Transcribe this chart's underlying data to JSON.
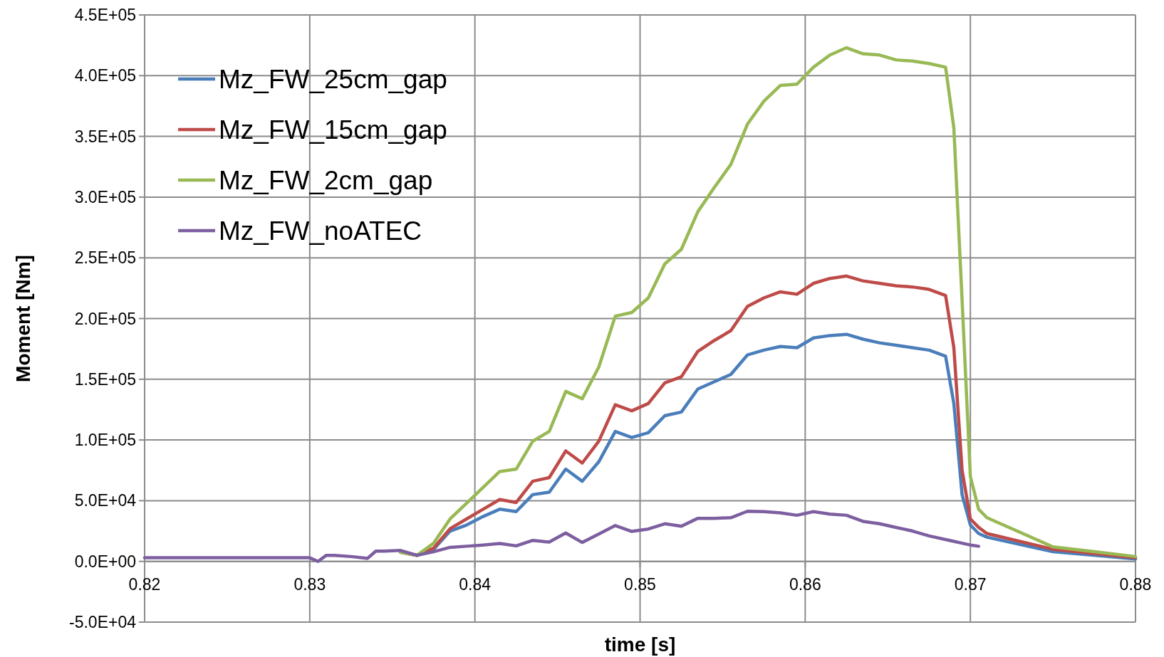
{
  "chart_data": {
    "type": "line",
    "xlabel": "time [s]",
    "ylabel": "Moment [Nm]",
    "x": [
      0.82,
      0.83,
      0.8305,
      0.831,
      0.8315,
      0.8325,
      0.8335,
      0.834,
      0.8345,
      0.8355,
      0.8365,
      0.8375,
      0.8385,
      0.8395,
      0.8405,
      0.8415,
      0.8425,
      0.8435,
      0.8445,
      0.8455,
      0.8465,
      0.8475,
      0.8485,
      0.8495,
      0.8505,
      0.8515,
      0.8525,
      0.8535,
      0.8545,
      0.8555,
      0.8565,
      0.8575,
      0.8585,
      0.8595,
      0.8605,
      0.8615,
      0.8625,
      0.8635,
      0.8645,
      0.8655,
      0.8665,
      0.8675,
      0.8685,
      0.869,
      0.8695,
      0.87,
      0.8705,
      0.871,
      0.875,
      0.88
    ],
    "series": [
      {
        "name": "Mz_FW_25cm_gap",
        "color": "#4a7ebb",
        "values": [
          null,
          null,
          null,
          null,
          null,
          null,
          null,
          null,
          null,
          7500,
          5000,
          10000,
          25000,
          30000,
          37000,
          43000,
          41000,
          55000,
          57000,
          76000,
          66000,
          82000,
          107000,
          102000,
          106000,
          120000,
          123000,
          142000,
          148000,
          154000,
          170000,
          174000,
          177000,
          176000,
          184000,
          186000,
          187000,
          183000,
          180000,
          178000,
          176000,
          174000,
          169000,
          130000,
          55000,
          30000,
          23000,
          20000,
          8000,
          2000
        ]
      },
      {
        "name": "Mz_FW_15cm_gap",
        "color": "#be4b48",
        "values": [
          null,
          null,
          null,
          null,
          null,
          null,
          null,
          null,
          null,
          7500,
          5000,
          11000,
          27000,
          35000,
          43000,
          51000,
          48500,
          66000,
          69000,
          91000,
          81000,
          99000,
          129000,
          124000,
          130000,
          147000,
          152000,
          173000,
          182000,
          190000,
          210000,
          217000,
          222000,
          220000,
          229000,
          233000,
          235000,
          231000,
          229000,
          227000,
          226000,
          224000,
          219000,
          176000,
          75000,
          35000,
          28000,
          23000,
          10000,
          3000
        ]
      },
      {
        "name": "Mz_FW_2cm_gap",
        "color": "#98b954",
        "values": [
          null,
          null,
          null,
          null,
          null,
          null,
          null,
          null,
          null,
          7500,
          5000,
          15000,
          35000,
          48000,
          61000,
          74000,
          76000,
          99000,
          107000,
          140000,
          134000,
          160000,
          202000,
          205000,
          217000,
          245000,
          257000,
          288000,
          308000,
          327000,
          360000,
          379000,
          392000,
          393000,
          407000,
          417000,
          423000,
          418000,
          417000,
          413000,
          412000,
          410000,
          407000,
          357000,
          215000,
          70000,
          43000,
          36000,
          12000,
          4000
        ]
      },
      {
        "name": "Mz_FW_noATEC",
        "color": "#7d5fa0",
        "values": [
          3000,
          3000,
          0,
          5000,
          5000,
          4000,
          2500,
          8500,
          8500,
          9000,
          5000,
          8000,
          11600,
          12500,
          13500,
          14800,
          12800,
          17300,
          15900,
          23400,
          15600,
          22500,
          29500,
          24700,
          26700,
          31000,
          29000,
          35500,
          35500,
          36000,
          41300,
          41000,
          40000,
          38000,
          41000,
          39000,
          38000,
          33000,
          31000,
          28000,
          25000,
          21000,
          18000,
          16500,
          15000,
          13500,
          12500,
          null,
          null,
          null
        ]
      }
    ],
    "xlim": [
      0.82,
      0.88
    ],
    "xticks": [
      0.82,
      0.83,
      0.84,
      0.85,
      0.86,
      0.87,
      0.88
    ],
    "ylim": [
      -50000,
      450000
    ],
    "yticks": [
      {
        "value": -50000,
        "label": "-5.0E+04"
      },
      {
        "value": 0,
        "label": "0.0E+00"
      },
      {
        "value": 50000,
        "label": "5.0E+04"
      },
      {
        "value": 100000,
        "label": "1.0E+05"
      },
      {
        "value": 150000,
        "label": "1.5E+05"
      },
      {
        "value": 200000,
        "label": "2.0E+05"
      },
      {
        "value": 250000,
        "label": "2.5E+05"
      },
      {
        "value": 300000,
        "label": "3.0E+05"
      },
      {
        "value": 350000,
        "label": "3.5E+05"
      },
      {
        "value": 400000,
        "label": "4.0E+05"
      },
      {
        "value": 450000,
        "label": "4.5E+05"
      }
    ],
    "grid": true,
    "legend": "top left",
    "marker": "none",
    "line_style": "solid"
  }
}
